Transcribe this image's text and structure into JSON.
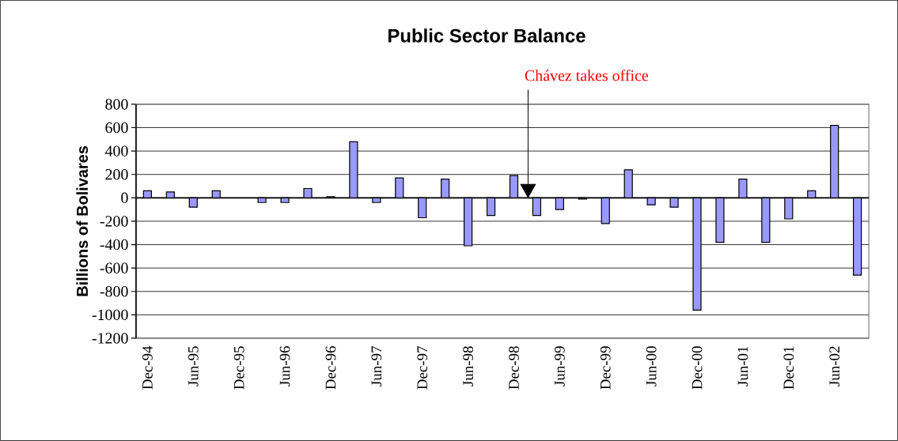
{
  "chart_data": {
    "type": "bar",
    "title": "Public Sector Balance",
    "ylabel": "Billions of Bolivares",
    "categories": [
      "Dec-94",
      null,
      "Jun-95",
      null,
      "Dec-95",
      null,
      "Jun-96",
      null,
      "Dec-96",
      null,
      "Jun-97",
      null,
      "Dec-97",
      null,
      "Jun-98",
      null,
      "Dec-98",
      null,
      "Jun-99",
      null,
      "Dec-99",
      null,
      "Jun-00",
      null,
      "Dec-00",
      null,
      "Jun-01",
      null,
      "Dec-01",
      null,
      "Jun-02",
      null
    ],
    "values": [
      60,
      50,
      -80,
      60,
      null,
      -40,
      -40,
      80,
      10,
      480,
      -40,
      170,
      -170,
      160,
      -410,
      -150,
      190,
      -150,
      -100,
      -10,
      -220,
      240,
      -60,
      -80,
      -960,
      -380,
      160,
      -380,
      -180,
      60,
      620,
      -660
    ],
    "color": "#9999ff",
    "ylim": [
      -1200,
      800
    ],
    "yticks": [
      -1200,
      -1000,
      -800,
      -600,
      -400,
      -200,
      0,
      200,
      400,
      600,
      800
    ],
    "grid": "y",
    "annotations": [
      "Chávez takes office"
    ]
  }
}
